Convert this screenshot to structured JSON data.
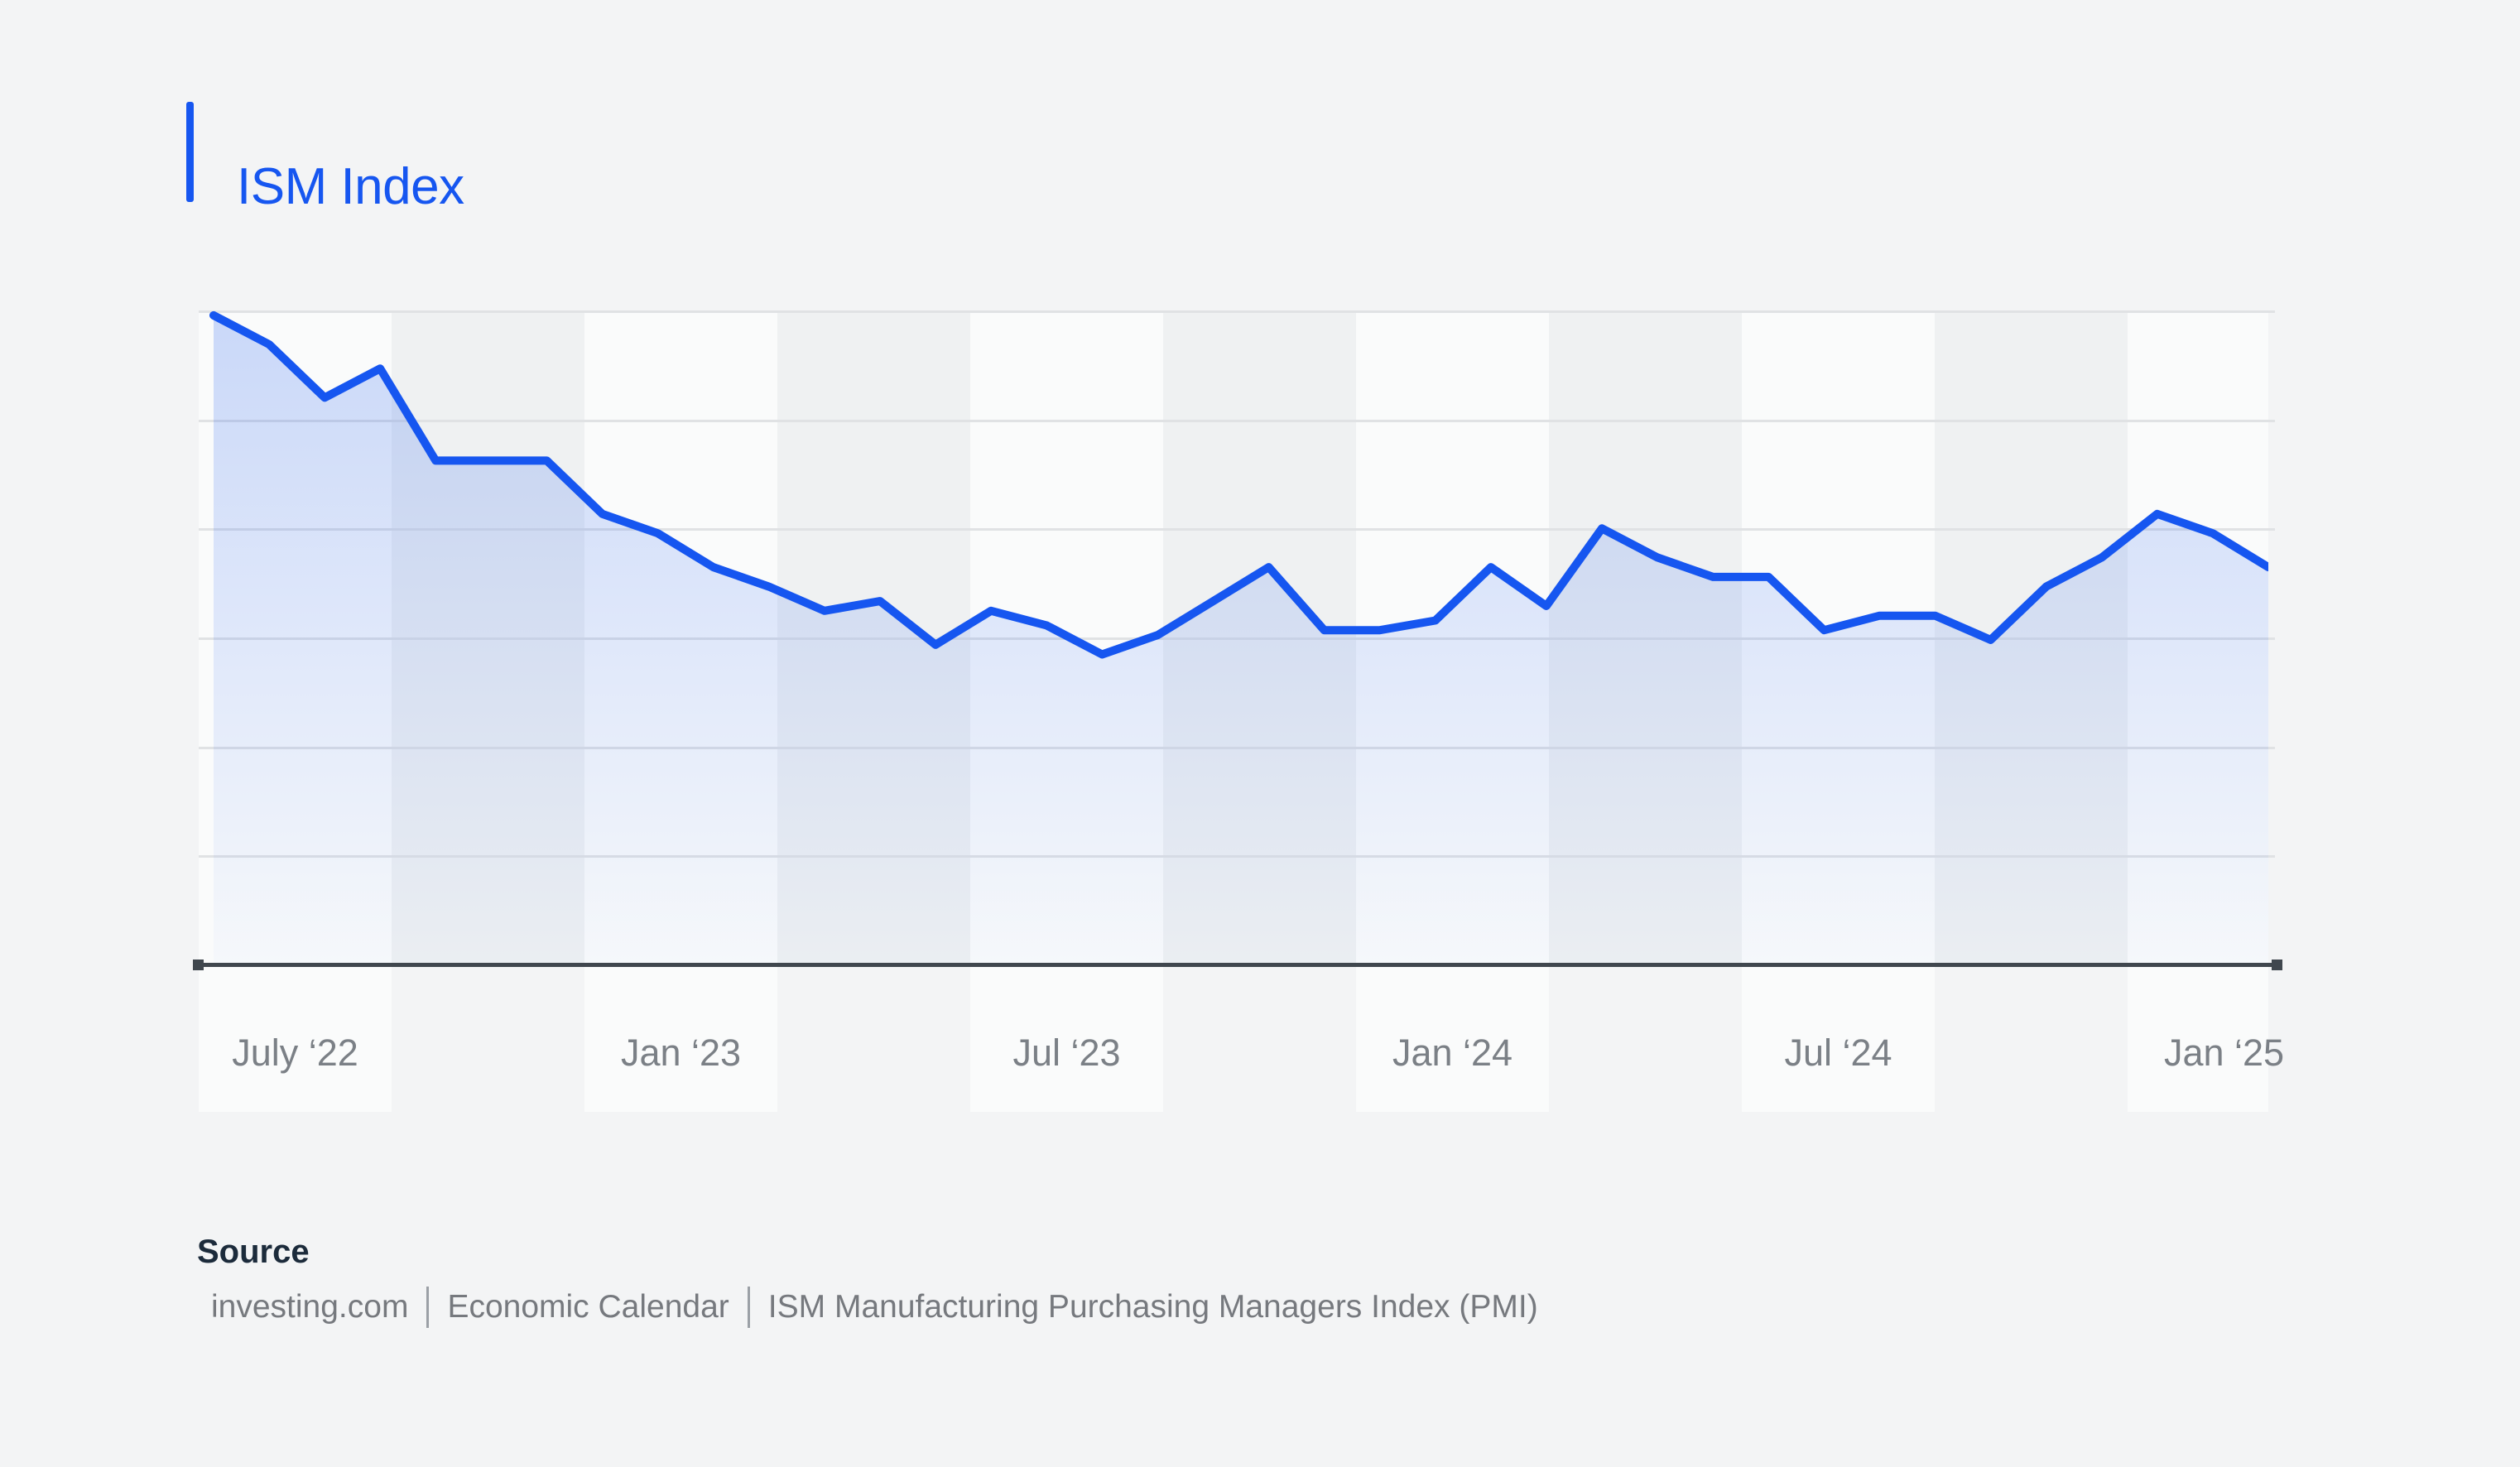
{
  "header": {
    "title": "ISM Index",
    "accent_color": "#1656F0"
  },
  "chart_data": {
    "type": "area",
    "title": "ISM Index",
    "xlabel": "",
    "ylabel": "",
    "legend": "none",
    "grid": "horizontal",
    "y_gridline_count": 6,
    "y_axis_labels_visible": false,
    "ylim": [
      39.6,
      53.1
    ],
    "x_tick_labels": [
      "July ‘22",
      "Jan ‘23",
      "Jul ‘23",
      "Jan ‘24",
      "Jul ‘24",
      "Jan ‘25"
    ],
    "values": [
      53.0,
      52.4,
      51.3,
      51.9,
      50.0,
      50.0,
      50.0,
      48.9,
      48.5,
      47.8,
      47.4,
      46.9,
      47.1,
      46.2,
      46.9,
      46.6,
      46.0,
      46.4,
      47.1,
      47.8,
      46.5,
      46.5,
      46.7,
      47.8,
      47.0,
      48.6,
      48.0,
      47.6,
      47.6,
      46.5,
      46.8,
      46.8,
      46.3,
      47.4,
      48.0,
      48.9,
      48.5,
      47.8
    ],
    "line_color": "#1656F0",
    "area_fill_top": "rgba(22,86,240,0.21)",
    "area_fill_bottom": "rgba(22,86,240,0.02)",
    "band_light_color": "#fafbfb",
    "band_dark_color": "#eff1f2",
    "axis_color": "#40474e",
    "gridline_color": "#e0e2e4"
  },
  "source": {
    "label": "Source",
    "items": [
      "investing.com",
      "Economic Calendar",
      "ISM Manufacturing Purchasing Managers Index (PMI)"
    ]
  }
}
